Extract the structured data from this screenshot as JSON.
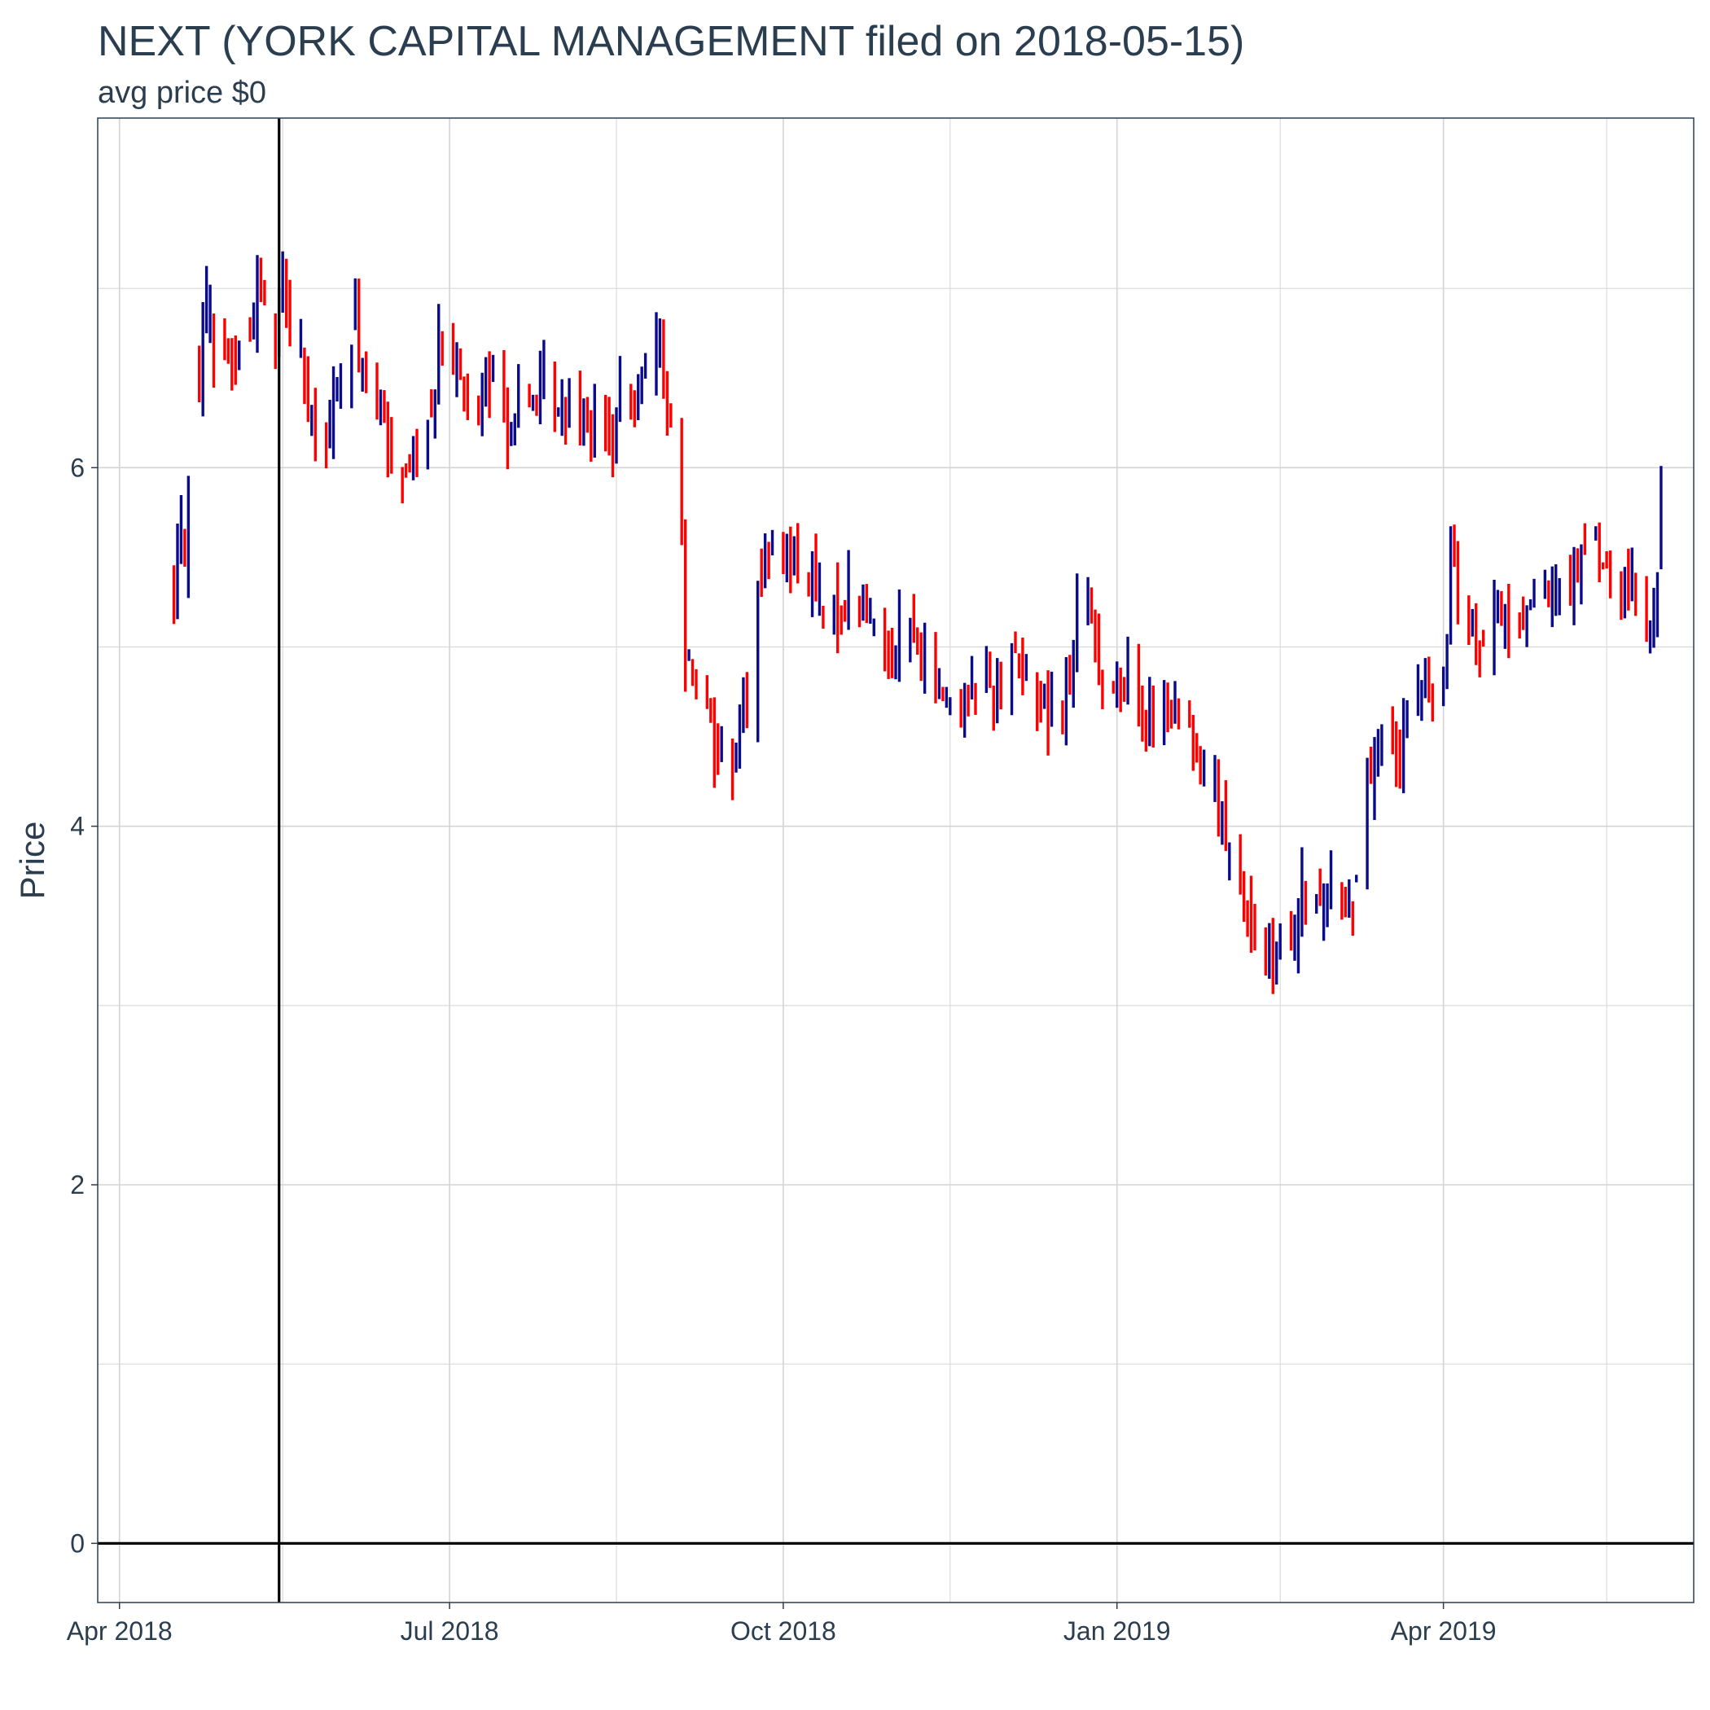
{
  "chart_data": {
    "type": "ohlc",
    "title": "NEXT (YORK CAPITAL MANAGEMENT filed on 2018-05-15)",
    "subtitle": "avg price $0",
    "xlabel": "",
    "ylabel": "Price",
    "x_ticks": [
      {
        "date": "2018-04-01",
        "label": "Apr 2018"
      },
      {
        "date": "2018-07-01",
        "label": "Jul 2018"
      },
      {
        "date": "2018-10-01",
        "label": "Oct 2018"
      },
      {
        "date": "2019-01-01",
        "label": "Jan 2019"
      },
      {
        "date": "2019-04-01",
        "label": "Apr 2019"
      }
    ],
    "y_ticks": [
      0,
      2,
      4,
      6
    ],
    "xlim": [
      "2018-03-26",
      "2019-06-09"
    ],
    "ylim": [
      -0.33,
      7.95
    ],
    "grid": true,
    "legend": "none",
    "filing_date": "2018-05-15",
    "reference_price": 0,
    "colors": {
      "up": "#0a0a8c",
      "down": "#ff0000",
      "grid": "#d4d4d4",
      "border": "#2b3e50",
      "ref": "#000000",
      "text": "#2b3e50"
    },
    "anchors": [
      [
        "2018-04-16",
        5.35,
        5.7
      ],
      [
        "2018-04-19",
        5.55,
        5.75
      ],
      [
        "2018-04-23",
        6.55,
        7.1
      ],
      [
        "2018-04-26",
        6.8,
        6.6
      ],
      [
        "2018-04-30",
        6.7,
        6.6
      ],
      [
        "2018-05-03",
        6.6,
        6.65
      ],
      [
        "2018-05-07",
        6.75,
        7.0
      ],
      [
        "2018-05-10",
        7.05,
        6.9
      ],
      [
        "2018-05-14",
        6.8,
        7.1
      ],
      [
        "2018-05-17",
        7.0,
        6.8
      ],
      [
        "2018-05-21",
        6.7,
        6.4
      ],
      [
        "2018-05-24",
        6.2,
        6.1
      ],
      [
        "2018-05-29",
        6.2,
        6.5
      ],
      [
        "2018-06-01",
        6.4,
        6.7
      ],
      [
        "2018-06-05",
        6.8,
        6.55
      ],
      [
        "2018-06-08",
        6.55,
        6.35
      ],
      [
        "2018-06-12",
        6.3,
        6.1
      ],
      [
        "2018-06-15",
        6.1,
        6.0
      ],
      [
        "2018-06-19",
        6.0,
        6.05
      ],
      [
        "2018-06-22",
        6.05,
        6.3
      ],
      [
        "2018-06-26",
        6.3,
        6.75
      ],
      [
        "2018-06-29",
        6.7,
        6.5
      ],
      [
        "2018-07-03",
        6.5,
        6.35
      ],
      [
        "2018-07-09",
        6.35,
        6.45
      ],
      [
        "2018-07-13",
        6.45,
        6.25
      ],
      [
        "2018-07-18",
        6.25,
        6.35
      ],
      [
        "2018-07-23",
        6.35,
        6.45
      ],
      [
        "2018-07-27",
        6.45,
        6.3
      ],
      [
        "2018-08-01",
        6.3,
        6.4
      ],
      [
        "2018-08-06",
        6.4,
        6.25
      ],
      [
        "2018-08-10",
        6.25,
        6.15
      ],
      [
        "2018-08-15",
        6.15,
        6.4
      ],
      [
        "2018-08-20",
        6.4,
        6.55
      ],
      [
        "2018-08-24",
        6.55,
        6.7
      ],
      [
        "2018-08-28",
        6.7,
        6.3
      ],
      [
        "2018-08-31",
        6.2,
        5.0
      ],
      [
        "2018-09-05",
        4.95,
        4.8
      ],
      [
        "2018-09-10",
        4.75,
        4.45
      ],
      [
        "2018-09-13",
        4.4,
        4.4
      ],
      [
        "2018-09-17",
        4.4,
        4.65
      ],
      [
        "2018-09-21",
        4.7,
        5.4
      ],
      [
        "2018-09-25",
        5.4,
        5.5
      ],
      [
        "2018-09-28",
        5.5,
        5.55
      ],
      [
        "2018-10-03",
        5.55,
        5.45
      ],
      [
        "2018-10-08",
        5.45,
        5.25
      ],
      [
        "2018-10-12",
        5.15,
        5.2
      ],
      [
        "2018-10-17",
        5.2,
        5.3
      ],
      [
        "2018-10-22",
        5.3,
        5.15
      ],
      [
        "2018-10-26",
        5.1,
        5.0
      ],
      [
        "2018-10-31",
        5.0,
        5.15
      ],
      [
        "2018-11-05",
        5.1,
        4.95
      ],
      [
        "2018-11-09",
        4.9,
        4.75
      ],
      [
        "2018-11-14",
        4.75,
        4.7
      ],
      [
        "2018-11-19",
        4.7,
        4.8
      ],
      [
        "2018-11-26",
        4.8,
        4.75
      ],
      [
        "2018-11-30",
        4.8,
        5.0
      ],
      [
        "2018-12-04",
        5.0,
        4.8
      ],
      [
        "2018-12-10",
        4.75,
        4.65
      ],
      [
        "2018-12-14",
        4.65,
        4.75
      ],
      [
        "2018-12-19",
        4.75,
        5.2
      ],
      [
        "2018-12-24",
        5.2,
        5.0
      ],
      [
        "2018-12-28",
        4.85,
        4.7
      ],
      [
        "2019-01-03",
        4.85,
        4.75
      ],
      [
        "2019-01-08",
        4.7,
        4.55
      ],
      [
        "2019-01-14",
        4.6,
        4.65
      ],
      [
        "2019-01-18",
        4.65,
        4.45
      ],
      [
        "2019-01-24",
        4.45,
        4.3
      ],
      [
        "2019-01-28",
        4.25,
        3.9
      ],
      [
        "2019-02-01",
        3.8,
        3.6
      ],
      [
        "2019-02-06",
        3.55,
        3.35
      ],
      [
        "2019-02-11",
        3.3,
        3.25
      ],
      [
        "2019-02-14",
        3.25,
        3.35
      ],
      [
        "2019-02-19",
        3.3,
        3.7
      ],
      [
        "2019-02-22",
        3.65,
        3.55
      ],
      [
        "2019-02-27",
        3.55,
        3.7
      ],
      [
        "2019-03-04",
        3.65,
        3.5
      ],
      [
        "2019-03-08",
        3.7,
        4.3
      ],
      [
        "2019-03-12",
        4.35,
        4.5
      ],
      [
        "2019-03-15",
        4.4,
        4.3
      ],
      [
        "2019-03-20",
        4.35,
        4.7
      ],
      [
        "2019-03-25",
        4.7,
        4.8
      ],
      [
        "2019-03-28",
        4.8,
        4.75
      ],
      [
        "2019-04-01",
        4.7,
        5.55
      ],
      [
        "2019-04-04",
        5.55,
        5.4
      ],
      [
        "2019-04-08",
        5.2,
        4.95
      ],
      [
        "2019-04-12",
        5.0,
        5.2
      ],
      [
        "2019-04-17",
        5.2,
        5.1
      ],
      [
        "2019-04-22",
        5.1,
        5.3
      ],
      [
        "2019-04-26",
        5.3,
        5.25
      ],
      [
        "2019-05-01",
        5.2,
        5.35
      ],
      [
        "2019-05-06",
        5.35,
        5.55
      ],
      [
        "2019-05-10",
        5.6,
        5.5
      ],
      [
        "2019-05-15",
        5.5,
        5.35
      ],
      [
        "2019-05-20",
        5.3,
        5.35
      ],
      [
        "2019-05-23",
        5.35,
        5.15
      ],
      [
        "2019-05-28",
        5.1,
        5.45
      ],
      [
        "2019-05-31",
        5.5,
        5.9
      ]
    ]
  }
}
